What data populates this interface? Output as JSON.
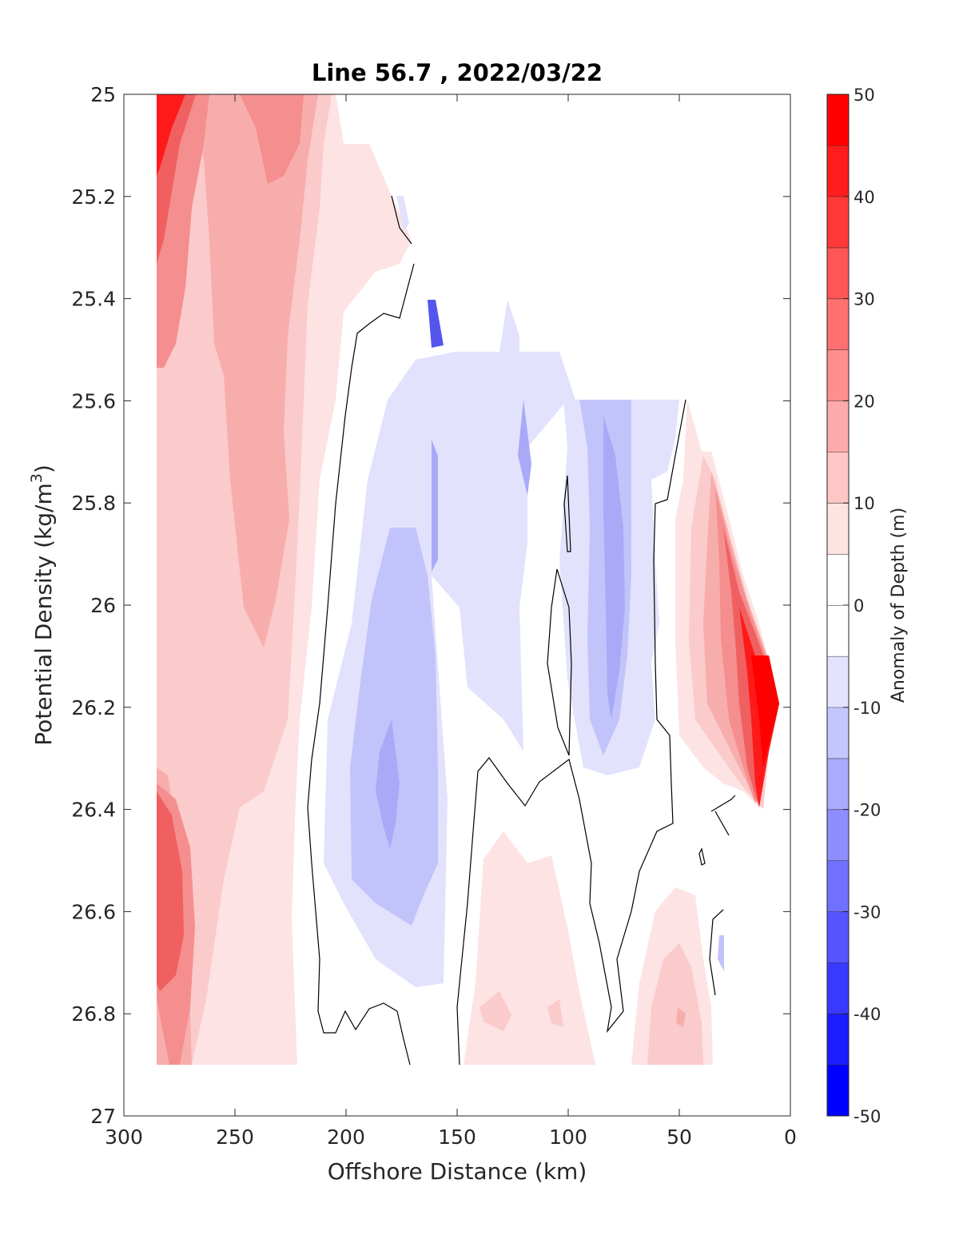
{
  "chart_data": {
    "type": "heatmap",
    "subtype": "filled-contour",
    "title": "Line 56.7 , 2022/03/22",
    "xlabel": "Offshore Distance (km)",
    "ylabel_main": "Potential Density (kg/m",
    "ylabel_sup": "3",
    "ylabel_tail": ")",
    "xlim": [
      300,
      0
    ],
    "x_reversed": true,
    "ylim": [
      25,
      27
    ],
    "y_reversed": true,
    "xticks": [
      300,
      250,
      200,
      150,
      100,
      50,
      0
    ],
    "yticks": [
      25,
      25.2,
      25.4,
      25.6,
      25.8,
      26,
      26.2,
      26.4,
      26.6,
      26.8,
      27
    ],
    "ytick_labels": [
      "25",
      "25.2",
      "25.4",
      "25.6",
      "25.8",
      "26",
      "26.2",
      "26.4",
      "26.6",
      "26.8",
      "27"
    ],
    "colorbar": {
      "label": "Anomaly of Depth (m)",
      "limits": [
        -50,
        50
      ],
      "step": 5,
      "ticks": [
        50,
        40,
        30,
        20,
        10,
        0,
        -10,
        -20,
        -30,
        -40,
        -50
      ],
      "colormap": "blue-white-red",
      "negative_color": "#0000ff",
      "positive_color": "#ff0000",
      "zero_color": "#ffffff"
    },
    "data_extent": {
      "x_range": [
        285,
        5
      ],
      "y_range": [
        25,
        26.9
      ],
      "note_regions": [
        {
          "name": "offshore-positive",
          "x": [
            285,
            205
          ],
          "y": [
            25,
            26.9
          ],
          "value_range": [
            5,
            50
          ]
        },
        {
          "name": "mid-negative",
          "x": [
            200,
            135
          ],
          "y": [
            25.5,
            26.75
          ],
          "value_range": [
            -20,
            -5
          ]
        },
        {
          "name": "deep-positive",
          "x": [
            135,
            35
          ],
          "y": [
            26.5,
            26.9
          ],
          "value_range": [
            5,
            20
          ]
        },
        {
          "name": "near-negative",
          "x": [
            100,
            60
          ],
          "y": [
            25.6,
            26.3
          ],
          "value_range": [
            -20,
            -5
          ]
        },
        {
          "name": "nearshore-positive",
          "x": [
            50,
            5
          ],
          "y": [
            25.7,
            26.4
          ],
          "value_range": [
            5,
            50
          ]
        }
      ]
    }
  }
}
